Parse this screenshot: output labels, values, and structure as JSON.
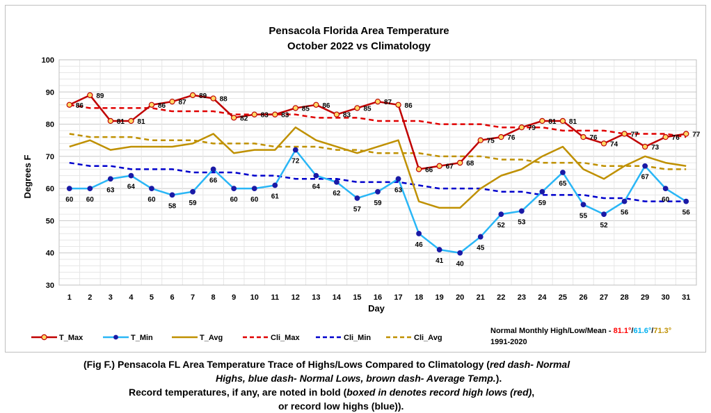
{
  "chart_data": {
    "type": "line",
    "title": "Pensacola Florida Area Temperature",
    "subtitle": "October 2022 vs Climatology",
    "xlabel": "Day",
    "ylabel": "Degrees F",
    "ylim": [
      30,
      100
    ],
    "yticks": [
      30,
      40,
      50,
      60,
      70,
      80,
      90,
      100
    ],
    "grid": true,
    "categories": [
      1,
      2,
      3,
      4,
      5,
      6,
      7,
      8,
      9,
      10,
      11,
      12,
      13,
      14,
      15,
      16,
      17,
      18,
      19,
      20,
      21,
      22,
      23,
      24,
      25,
      26,
      27,
      28,
      29,
      30,
      31
    ],
    "series": [
      {
        "name": "T_Max",
        "color": "#c00000",
        "marker": "#ffd966",
        "style": "solid",
        "values": [
          86,
          89,
          81,
          81,
          86,
          87,
          89,
          88,
          82,
          83,
          83,
          85,
          86,
          83,
          85,
          87,
          86,
          66,
          67,
          68,
          75,
          76,
          79,
          81,
          81,
          76,
          74,
          77,
          73,
          76,
          77
        ]
      },
      {
        "name": "T_Min",
        "color": "#29b6f6",
        "marker": "#1a1aa6",
        "style": "solid",
        "values": [
          60,
          60,
          63,
          64,
          60,
          58,
          59,
          66,
          60,
          60,
          61,
          72,
          64,
          62,
          57,
          59,
          63,
          46,
          41,
          40,
          45,
          52,
          53,
          59,
          65,
          55,
          52,
          56,
          67,
          60,
          56
        ]
      },
      {
        "name": "T_Avg",
        "color": "#bf9000",
        "style": "solid",
        "values": [
          73,
          75,
          72,
          73,
          73,
          73,
          74,
          77,
          71,
          72,
          72,
          79,
          75,
          73,
          71,
          73,
          75,
          56,
          54,
          54,
          60,
          64,
          66,
          70,
          73,
          66,
          63,
          67,
          70,
          68,
          67
        ]
      },
      {
        "name": "Cli_Max",
        "color": "#e00000",
        "style": "dashed",
        "values": [
          86,
          85,
          85,
          85,
          85,
          84,
          84,
          84,
          83,
          83,
          83,
          83,
          82,
          82,
          82,
          81,
          81,
          81,
          80,
          80,
          80,
          79,
          79,
          79,
          78,
          78,
          78,
          77,
          77,
          77,
          76
        ]
      },
      {
        "name": "Cli_Min",
        "color": "#0000cc",
        "style": "dashed",
        "values": [
          68,
          67,
          67,
          66,
          66,
          66,
          65,
          65,
          65,
          64,
          64,
          63,
          63,
          63,
          62,
          62,
          62,
          61,
          60,
          60,
          60,
          59,
          59,
          58,
          58,
          58,
          57,
          57,
          56,
          56,
          56
        ]
      },
      {
        "name": "Cli_Avg",
        "color": "#bf9000",
        "style": "dashed",
        "values": [
          77,
          76,
          76,
          76,
          75,
          75,
          75,
          74,
          74,
          74,
          73,
          73,
          73,
          72,
          72,
          71,
          71,
          71,
          70,
          70,
          70,
          69,
          69,
          68,
          68,
          68,
          67,
          67,
          67,
          66,
          66
        ]
      }
    ],
    "normals": {
      "label": "Normal Monthly High/Low/Mean - ",
      "high": "81.1°",
      "high_color": "#ff0000",
      "sep1": "/",
      "low": "61.6°",
      "low_color": "#00b0f0",
      "sep2": "/",
      "mean": "71.3°",
      "mean_color": "#bf9000",
      "period": "1991-2020"
    }
  },
  "caption": {
    "line1_a": "(Fig F.) Pensacola FL Area Temperature Trace of Highs/Lows Compared to Climatology (",
    "line1_b": "red dash- Normal",
    "line2_a": "Highs, blue dash- Normal Lows, brown dash- Average Temp.",
    "line2_b": ").",
    "line3_a": "Record temperatures, if any, are noted in bold (",
    "line3_b": "boxed in denotes record high lows (red)",
    "line3_c": ",",
    "line4": "or record low highs (blue))."
  }
}
